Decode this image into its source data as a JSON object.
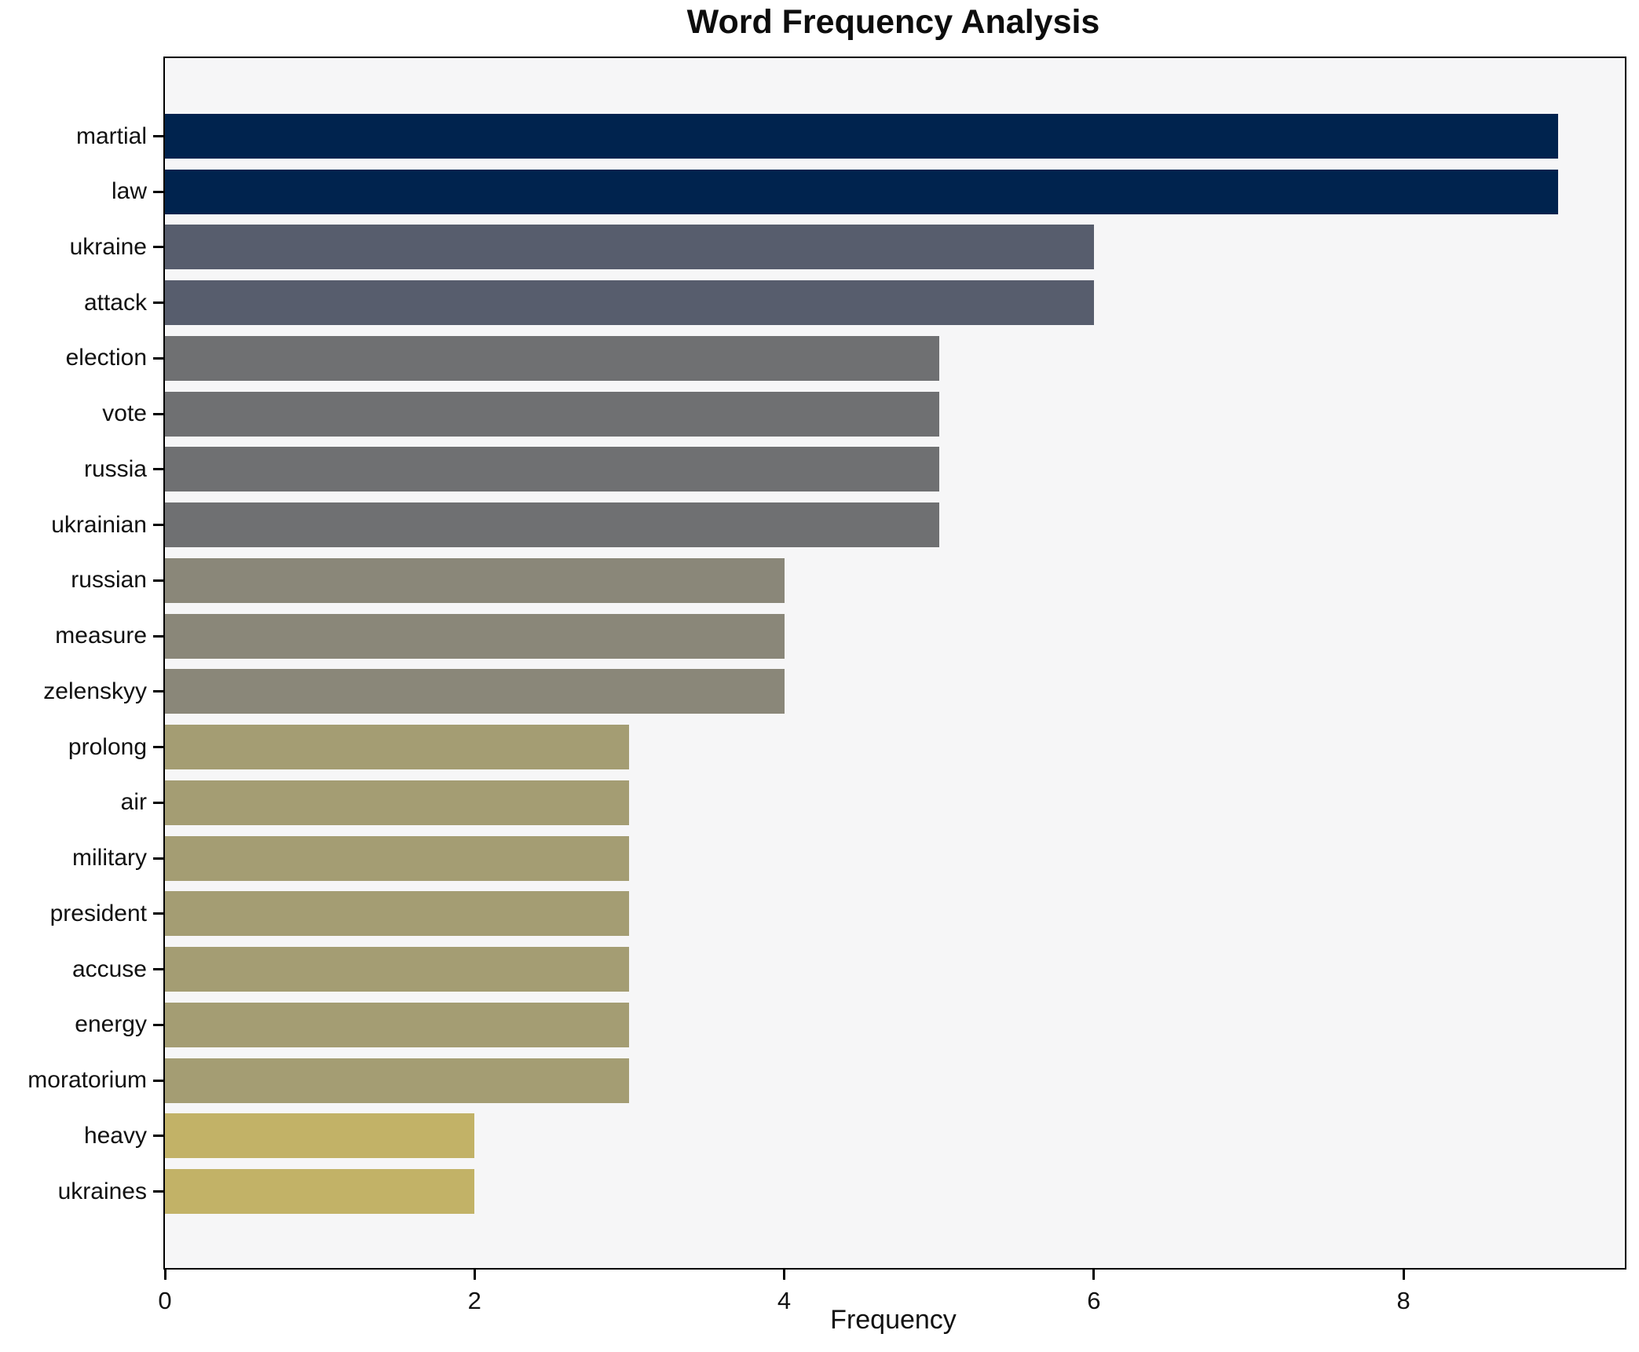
{
  "figure": {
    "background": "#ffffff",
    "plot_background": "#f6f6f7",
    "frame_color": "#000000"
  },
  "chart_data": {
    "type": "bar",
    "orientation": "horizontal",
    "title": "Word Frequency Analysis",
    "xlabel": "Frequency",
    "ylabel": "",
    "categories": [
      "martial",
      "law",
      "ukraine",
      "attack",
      "election",
      "vote",
      "russia",
      "ukrainian",
      "russian",
      "measure",
      "zelenskyy",
      "prolong",
      "air",
      "military",
      "president",
      "accuse",
      "energy",
      "moratorium",
      "heavy",
      "ukraines"
    ],
    "values": [
      9,
      9,
      6,
      6,
      5,
      5,
      5,
      5,
      4,
      4,
      4,
      3,
      3,
      3,
      3,
      3,
      3,
      3,
      2,
      2
    ],
    "bar_colors": [
      "#00234e",
      "#00234e",
      "#575d6d",
      "#575d6d",
      "#6f7072",
      "#6f7072",
      "#6f7072",
      "#6f7072",
      "#8a8779",
      "#8a8779",
      "#8a8779",
      "#a49d73",
      "#a49d73",
      "#a49d73",
      "#a49d73",
      "#a49d73",
      "#a49d73",
      "#a49d73",
      "#c2b267",
      "#c2b267"
    ],
    "xlim": [
      0,
      9.43
    ],
    "xticks": [
      0,
      2,
      4,
      6,
      8
    ],
    "grid": false,
    "legend": null
  }
}
